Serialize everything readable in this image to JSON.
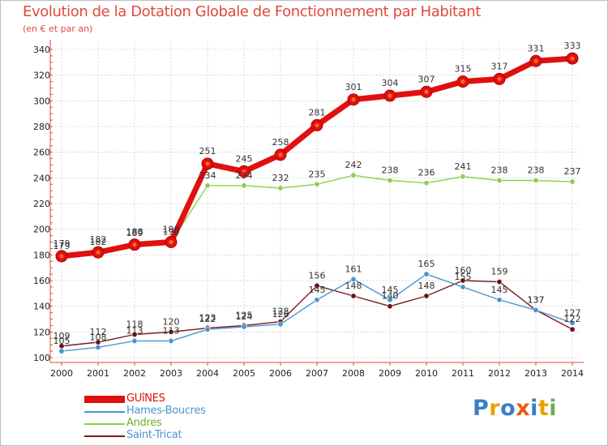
{
  "header": {
    "title": "Evolution de la Dotation Globale de Fonctionnement par Habitant",
    "subtitle": "(en € et par an)"
  },
  "logo": {
    "text": "Proxiti",
    "letters": [
      "P",
      "r",
      "o",
      "x",
      "i",
      "t",
      "i"
    ],
    "colors": [
      "#3a7ec8",
      "#e8a200",
      "#3a7ec8",
      "#e85a1a",
      "#3a7ec8",
      "#e8a200",
      "#6ab04c"
    ]
  },
  "chart_data": {
    "type": "line",
    "title": "Evolution de la Dotation Globale de Fonctionnement par Habitant",
    "subtitle": "(en € et par an)",
    "xlabel": "",
    "ylabel": "",
    "ylim": [
      100,
      340
    ],
    "yticks": [
      100,
      120,
      140,
      160,
      180,
      200,
      220,
      240,
      260,
      280,
      300,
      320,
      340
    ],
    "grid": true,
    "legend_position": "bottom-left",
    "x": [
      "2000",
      "2001",
      "2002",
      "2003",
      "2004",
      "2005",
      "2006",
      "2007",
      "2008",
      "2009",
      "2010",
      "2011",
      "2012",
      "2013",
      "2014"
    ],
    "series": [
      {
        "name": "Saint-Tricat",
        "color": "#7a1a1a",
        "values": [
          109,
          112,
          118,
          120,
          123,
          125,
          128,
          156,
          148,
          140,
          148,
          160,
          159,
          137,
          122
        ]
      },
      {
        "name": "Hames-Boucres",
        "color": "#4a95d0",
        "values": [
          105,
          108,
          113,
          113,
          122,
          124,
          126,
          145,
          161,
          145,
          165,
          155,
          145,
          137,
          127
        ]
      },
      {
        "name": "Andres",
        "color": "#8ed04a",
        "values": [
          179,
          182,
          189,
          190,
          234,
          234,
          232,
          235,
          242,
          238,
          236,
          241,
          238,
          238,
          237
        ]
      },
      {
        "name": "GUîNES",
        "color": "#e01010",
        "values": [
          179,
          182,
          188,
          190,
          251,
          245,
          258,
          281,
          301,
          304,
          307,
          315,
          317,
          331,
          333
        ]
      }
    ],
    "legend": [
      "GUîNES",
      "Hames-Boucres",
      "Andres",
      "Saint-Tricat"
    ]
  }
}
